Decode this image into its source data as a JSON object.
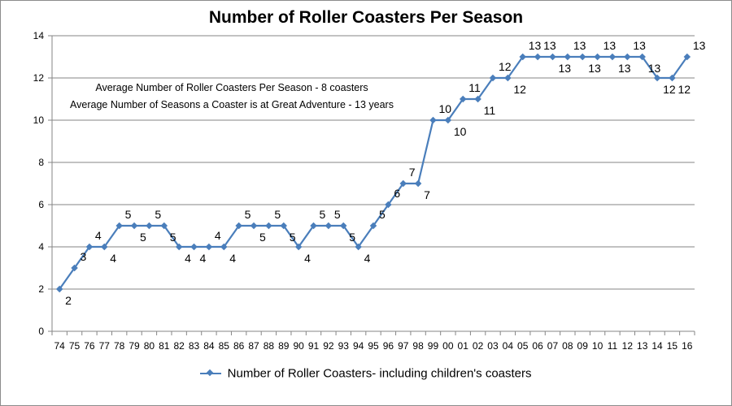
{
  "chart_data": {
    "type": "line",
    "title": "Number of Roller Coasters Per Season",
    "annotations": [
      "Average Number of Roller Coasters Per Season - 8 coasters",
      "Average Number of Seasons a Coaster is at Great Adventure - 13 years"
    ],
    "categories": [
      "74",
      "75",
      "76",
      "77",
      "78",
      "79",
      "80",
      "81",
      "82",
      "83",
      "84",
      "85",
      "86",
      "87",
      "88",
      "89",
      "90",
      "91",
      "92",
      "93",
      "94",
      "95",
      "96",
      "97",
      "98",
      "99",
      "00",
      "01",
      "02",
      "03",
      "04",
      "05",
      "06",
      "07",
      "08",
      "09",
      "10",
      "11",
      "12",
      "13",
      "14",
      "15",
      "16"
    ],
    "series": [
      {
        "name": "Number of Roller Coasters- including children's coasters",
        "values": [
          2,
          3,
          4,
          4,
          5,
          5,
          5,
          5,
          4,
          4,
          4,
          4,
          5,
          5,
          5,
          5,
          4,
          5,
          5,
          5,
          4,
          5,
          6,
          7,
          7,
          10,
          10,
          11,
          11,
          12,
          12,
          13,
          13,
          13,
          13,
          13,
          13,
          13,
          13,
          13,
          12,
          12,
          13
        ]
      }
    ],
    "ylim": [
      0,
      14
    ],
    "yticks": [
      0,
      2,
      4,
      6,
      8,
      10,
      12,
      14
    ],
    "grid": true,
    "legend_position": "bottom",
    "series_color": "#4a7ebb"
  }
}
